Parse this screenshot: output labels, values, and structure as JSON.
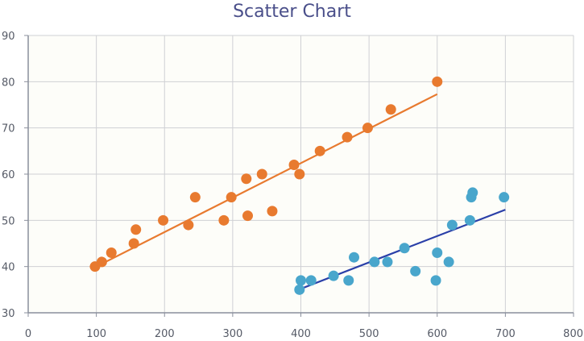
{
  "chart_data": {
    "type": "scatter",
    "title": "Scatter Chart",
    "xlabel": "",
    "ylabel": "",
    "xlim": [
      0,
      800
    ],
    "ylim": [
      30,
      90
    ],
    "xticks": [
      0,
      100,
      200,
      300,
      400,
      500,
      600,
      700,
      800
    ],
    "yticks": [
      30,
      40,
      50,
      60,
      70,
      80,
      90
    ],
    "grid": true,
    "legend": "none",
    "series": [
      {
        "color": "#e87a2f",
        "trendline_color": "#e87a2f",
        "points": [
          [
            98,
            40
          ],
          [
            108,
            41
          ],
          [
            122,
            43
          ],
          [
            155,
            45
          ],
          [
            158,
            48
          ],
          [
            198,
            50
          ],
          [
            235,
            49
          ],
          [
            245,
            55
          ],
          [
            287,
            50
          ],
          [
            298,
            55
          ],
          [
            320,
            59
          ],
          [
            322,
            51
          ],
          [
            343,
            60
          ],
          [
            358,
            52
          ],
          [
            390,
            62
          ],
          [
            398,
            60
          ],
          [
            428,
            65
          ],
          [
            468,
            68
          ],
          [
            498,
            70
          ],
          [
            532,
            74
          ],
          [
            600,
            80
          ]
        ],
        "trendline": [
          [
            100,
            40
          ],
          [
            600,
            77.3
          ]
        ]
      },
      {
        "color": "#49a6cc",
        "trendline_color": "#2a3fa8",
        "points": [
          [
            398,
            35
          ],
          [
            400,
            37
          ],
          [
            415,
            37
          ],
          [
            448,
            38
          ],
          [
            470,
            37
          ],
          [
            478,
            42
          ],
          [
            508,
            41
          ],
          [
            527,
            41
          ],
          [
            552,
            44
          ],
          [
            568,
            39
          ],
          [
            598,
            37
          ],
          [
            600,
            43
          ],
          [
            617,
            41
          ],
          [
            622,
            49
          ],
          [
            648,
            50
          ],
          [
            650,
            55
          ],
          [
            652,
            56
          ],
          [
            698,
            55
          ]
        ],
        "trendline": [
          [
            400,
            35.2
          ],
          [
            700,
            52.3
          ]
        ]
      }
    ]
  }
}
